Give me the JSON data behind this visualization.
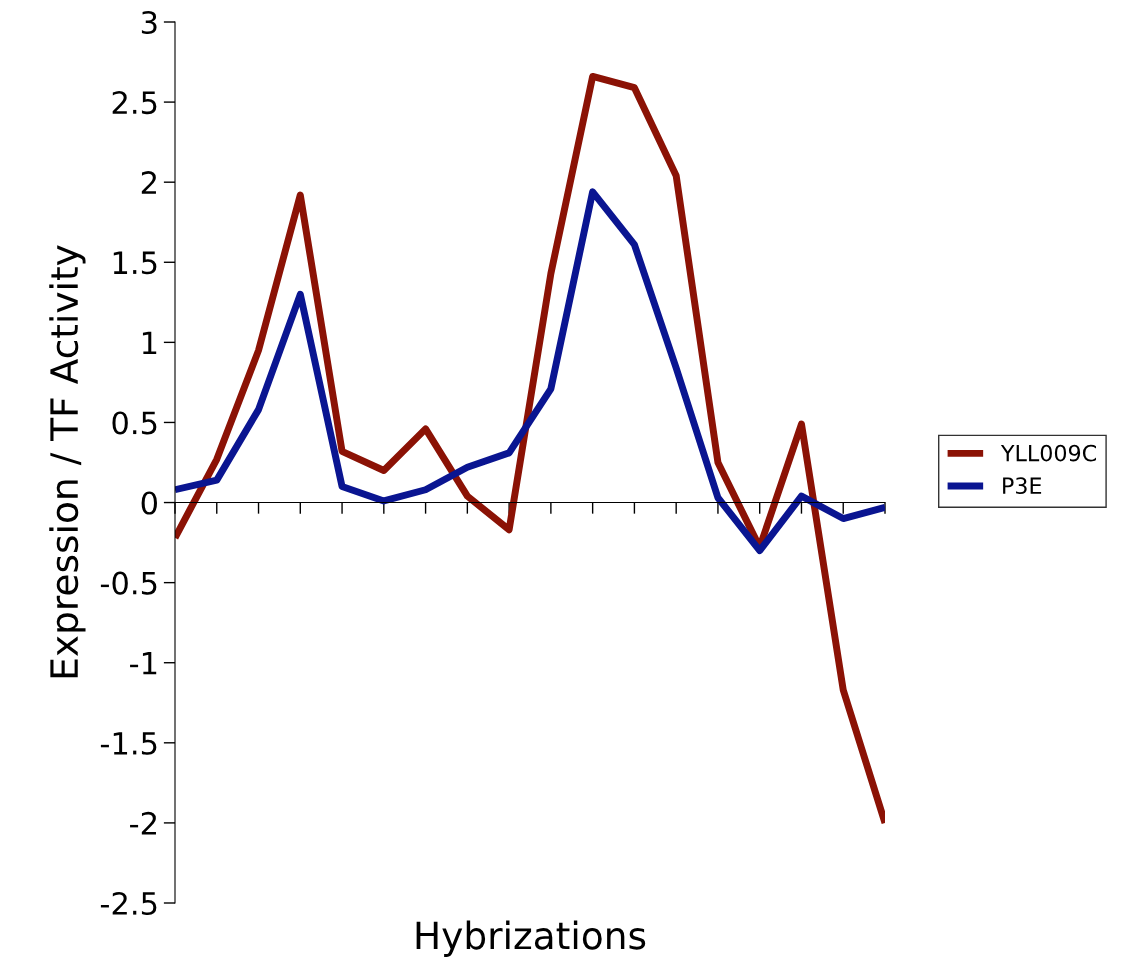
{
  "chart_data": {
    "type": "line",
    "xlabel": "Hybrizations",
    "ylabel": "Expression / TF Activity",
    "categories": [
      null,
      null,
      null,
      null,
      null,
      null,
      null,
      null,
      null,
      null,
      null,
      null,
      null,
      null,
      null,
      null,
      null,
      null
    ],
    "series": [
      {
        "name": "YLL009C",
        "color": "#8b1205",
        "values": [
          -0.22,
          0.27,
          0.95,
          1.92,
          0.32,
          0.2,
          0.46,
          0.04,
          -0.17,
          1.43,
          2.66,
          2.59,
          2.04,
          0.25,
          -0.28,
          0.49,
          -1.17,
          -2.0
        ]
      },
      {
        "name": "P3E",
        "color": "#0a1591",
        "values": [
          0.08,
          0.14,
          0.58,
          1.3,
          0.1,
          0.01,
          0.08,
          0.22,
          0.31,
          0.71,
          1.94,
          1.61,
          0.84,
          0.03,
          -0.3,
          0.04,
          -0.1,
          -0.03
        ]
      }
    ],
    "ylim": [
      -2.5,
      3
    ],
    "yticks": [
      -2.5,
      -2,
      -1.5,
      -1,
      -0.5,
      0,
      0.5,
      1,
      1.5,
      2,
      2.5,
      3
    ],
    "legend": "right",
    "tick_labels": "y",
    "marker": "none",
    "line_style": "solid"
  }
}
